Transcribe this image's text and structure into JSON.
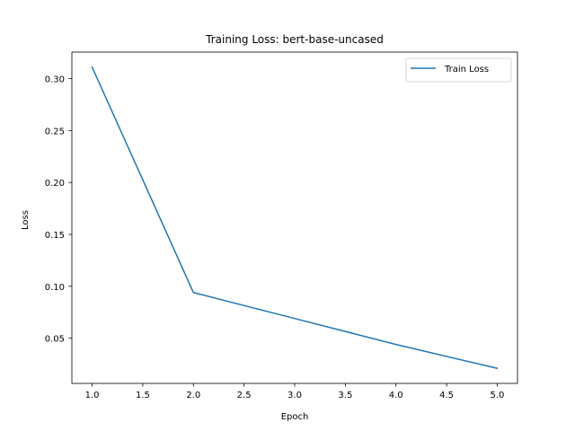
{
  "chart_data": {
    "type": "line",
    "title": "Training Loss: bert-base-uncased",
    "xlabel": "Epoch",
    "ylabel": "Loss",
    "x": [
      1.0,
      2.0,
      3.0,
      4.0,
      5.0
    ],
    "series": [
      {
        "name": "Train Loss",
        "values": [
          0.311,
          0.094,
          0.069,
          0.044,
          0.021
        ],
        "color": "#1f77b4"
      }
    ],
    "xlim": [
      0.8,
      5.2
    ],
    "ylim": [
      0.0065,
      0.3255
    ],
    "xticks": [
      "1.0",
      "1.5",
      "2.0",
      "2.5",
      "3.0",
      "3.5",
      "4.0",
      "4.5",
      "5.0"
    ],
    "yticks": [
      "0.05",
      "0.10",
      "0.15",
      "0.20",
      "0.25",
      "0.30"
    ],
    "grid": false,
    "legend_position": "top-right"
  }
}
